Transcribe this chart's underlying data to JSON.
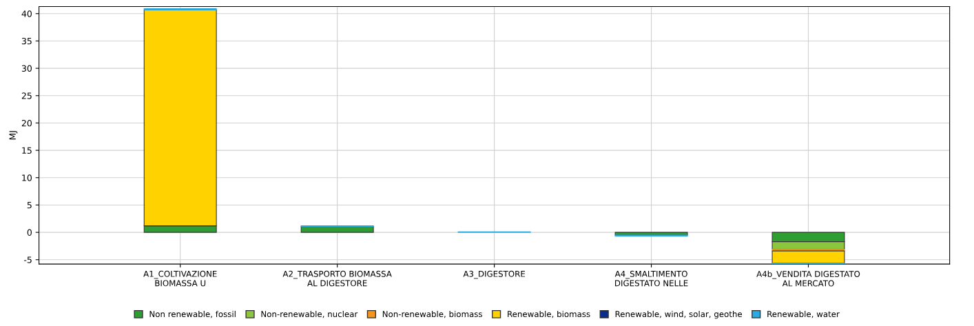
{
  "chart_data": {
    "type": "bar",
    "stacked": true,
    "ylabel": "MJ",
    "categories": [
      "A1_COLTIVAZIONE\nBIOMASSA U",
      "A2_TRASPORTO BIOMASSA\nAL DIGESTORE",
      "A3_DIGESTORE",
      "A4_SMALTIMENTO\nDIGESTATO NELLE",
      "A4b_VENDITA DIGESTATO\nAL MERCATO"
    ],
    "series": [
      {
        "name": "Non renewable, fossil",
        "color": "#2e9e32",
        "values": [
          1.2,
          1.1,
          null,
          -0.5,
          -1.7
        ]
      },
      {
        "name": "Non-renewable, nuclear",
        "color": "#8cc63f",
        "values": [
          null,
          null,
          null,
          null,
          -1.4
        ]
      },
      {
        "name": "Non-renewable, biomass",
        "color": "#f7941d",
        "values": [
          null,
          null,
          null,
          null,
          -0.3
        ]
      },
      {
        "name": "Renewable, biomass",
        "color": "#ffd200",
        "values": [
          39.5,
          null,
          null,
          null,
          -2.2
        ]
      },
      {
        "name": "Renewable, wind, solar, geothe",
        "color": "#0a2a8c",
        "values": [
          null,
          null,
          null,
          null,
          null
        ]
      },
      {
        "name": "Renewable, water",
        "color": "#29abe2",
        "values": [
          0.2,
          0.1,
          0.1,
          -0.2,
          -0.1
        ]
      }
    ],
    "ylim": [
      -5.8,
      41.3
    ],
    "yticks": [
      -5,
      0,
      5,
      10,
      15,
      20,
      25,
      30,
      35,
      40
    ],
    "grid": true,
    "legend": "bottom"
  }
}
